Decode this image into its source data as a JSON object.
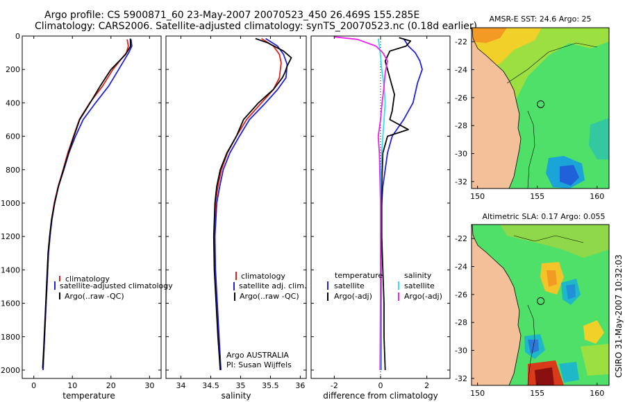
{
  "header": {
    "line1": "Argo profile: CS 5900871_60 23-May-2007 20070523_450 26.469S 155.285E",
    "line2": "Climatology: CARS2006. Satellite-adjusted climatology: synTS_20070523.nc (0.18d earlier)"
  },
  "credit": {
    "line1": "Argo AUSTRALIA",
    "line2": "PI: Susan Wijffels"
  },
  "stamp": "CSIRO 31-May-2007 10:32:03",
  "colors": {
    "red": "#e0201c",
    "blue": "#1f1fe0",
    "black": "#000000",
    "cyan": "#30e0f0",
    "magenta": "#f020f0",
    "land": "#f4c09a"
  },
  "chart_data": [
    {
      "type": "line",
      "id": "temperature",
      "xlabel": "temperature",
      "xlim": [
        -3,
        33
      ],
      "ylim": [
        2050,
        0
      ],
      "xticks": [
        0,
        10,
        20,
        30
      ],
      "yticks": [
        0,
        200,
        400,
        600,
        800,
        1000,
        1200,
        1400,
        1600,
        1800,
        2000
      ],
      "series": [
        {
          "name": "climatology",
          "color": "#e0201c",
          "points": [
            [
              24.2,
              20
            ],
            [
              24.5,
              60
            ],
            [
              24.0,
              100
            ],
            [
              20.5,
              200
            ],
            [
              17.8,
              300
            ],
            [
              14.5,
              400
            ],
            [
              11.8,
              500
            ],
            [
              10.3,
              600
            ],
            [
              8.8,
              700
            ],
            [
              7.6,
              800
            ],
            [
              6.3,
              900
            ],
            [
              5.3,
              1000
            ],
            [
              4.6,
              1100
            ],
            [
              4.2,
              1200
            ],
            [
              3.8,
              1300
            ],
            [
              3.6,
              1400
            ],
            [
              3.4,
              1500
            ],
            [
              3.2,
              1600
            ],
            [
              3.0,
              1700
            ],
            [
              2.8,
              1800
            ],
            [
              2.6,
              1900
            ],
            [
              2.4,
              2000
            ]
          ]
        },
        {
          "name": "satellite-adjusted climatology",
          "color": "#1f1fe0",
          "points": [
            [
              25.2,
              20
            ],
            [
              25.4,
              60
            ],
            [
              24.6,
              100
            ],
            [
              22.0,
              200
            ],
            [
              19.4,
              300
            ],
            [
              16.0,
              400
            ],
            [
              12.8,
              500
            ],
            [
              10.8,
              600
            ],
            [
              9.1,
              700
            ],
            [
              7.8,
              800
            ],
            [
              6.4,
              900
            ],
            [
              5.4,
              1000
            ],
            [
              4.7,
              1100
            ],
            [
              4.2,
              1200
            ],
            [
              3.8,
              1300
            ],
            [
              3.6,
              1400
            ],
            [
              3.4,
              1500
            ],
            [
              3.2,
              1600
            ],
            [
              3.0,
              1700
            ],
            [
              2.8,
              1800
            ],
            [
              2.6,
              1900
            ],
            [
              2.4,
              2000
            ]
          ]
        },
        {
          "name": "Argo(..raw -QC)",
          "color": "#000000",
          "points": [
            [
              25.0,
              15
            ],
            [
              25.1,
              60
            ],
            [
              23.8,
              110
            ],
            [
              20.0,
              200
            ],
            [
              17.2,
              300
            ],
            [
              14.6,
              400
            ],
            [
              11.9,
              500
            ],
            [
              10.4,
              600
            ],
            [
              9.0,
              700
            ],
            [
              7.7,
              800
            ],
            [
              6.4,
              900
            ],
            [
              5.4,
              1000
            ],
            [
              4.6,
              1100
            ],
            [
              4.1,
              1200
            ],
            [
              3.7,
              1300
            ],
            [
              3.5,
              1400
            ],
            [
              3.3,
              1500
            ],
            [
              3.1,
              1600
            ],
            [
              2.9,
              1700
            ],
            [
              2.7,
              1800
            ],
            [
              2.5,
              1900
            ],
            [
              2.3,
              1990
            ]
          ]
        }
      ]
    },
    {
      "type": "line",
      "id": "salinity",
      "xlabel": "salinity",
      "xlim": [
        33.75,
        36.1
      ],
      "ylim": [
        2050,
        0
      ],
      "xticks": [
        34,
        34.5,
        35,
        35.5,
        36
      ],
      "series": [
        {
          "name": "climatology",
          "color": "#e0201c",
          "points": [
            [
              35.35,
              15
            ],
            [
              35.55,
              60
            ],
            [
              35.65,
              110
            ],
            [
              35.68,
              160
            ],
            [
              35.65,
              250
            ],
            [
              35.55,
              320
            ],
            [
              35.35,
              400
            ],
            [
              35.1,
              500
            ],
            [
              34.93,
              600
            ],
            [
              34.78,
              700
            ],
            [
              34.68,
              800
            ],
            [
              34.62,
              900
            ],
            [
              34.58,
              1000
            ],
            [
              34.56,
              1200
            ],
            [
              34.57,
              1400
            ],
            [
              34.6,
              1600
            ],
            [
              34.63,
              1800
            ],
            [
              34.66,
              2000
            ]
          ]
        },
        {
          "name": "satellite adj. clim.",
          "color": "#1f1fe0",
          "points": [
            [
              35.42,
              15
            ],
            [
              35.62,
              60
            ],
            [
              35.72,
              110
            ],
            [
              35.78,
              170
            ],
            [
              35.76,
              250
            ],
            [
              35.62,
              320
            ],
            [
              35.42,
              400
            ],
            [
              35.15,
              500
            ],
            [
              34.98,
              600
            ],
            [
              34.82,
              700
            ],
            [
              34.71,
              800
            ],
            [
              34.65,
              900
            ],
            [
              34.6,
              1000
            ],
            [
              34.57,
              1200
            ],
            [
              34.58,
              1400
            ],
            [
              34.61,
              1600
            ],
            [
              34.64,
              1800
            ],
            [
              34.67,
              2000
            ]
          ]
        },
        {
          "name": "Argo(..raw -QC)",
          "color": "#000000",
          "points": [
            [
              35.25,
              15
            ],
            [
              35.45,
              40
            ],
            [
              35.72,
              90
            ],
            [
              35.85,
              130
            ],
            [
              35.78,
              180
            ],
            [
              35.74,
              220
            ],
            [
              35.7,
              250
            ],
            [
              35.55,
              320
            ],
            [
              35.3,
              400
            ],
            [
              35.05,
              500
            ],
            [
              34.93,
              600
            ],
            [
              34.77,
              700
            ],
            [
              34.66,
              800
            ],
            [
              34.6,
              900
            ],
            [
              34.57,
              1000
            ],
            [
              34.55,
              1200
            ],
            [
              34.56,
              1400
            ],
            [
              34.59,
              1600
            ],
            [
              34.62,
              1800
            ],
            [
              34.66,
              2000
            ]
          ]
        }
      ]
    },
    {
      "type": "line",
      "id": "difference",
      "xlabel": "difference from climatology",
      "xlim": [
        -3,
        3
      ],
      "ylim": [
        2050,
        0
      ],
      "xticks": [
        -2,
        0,
        2
      ],
      "legend_left_title": "temperature",
      "legend_right_title": "salinity",
      "series": [
        {
          "name": "temperature satellite",
          "label": "satellite",
          "color": "#1f1fe0",
          "points": [
            [
              1.0,
              15
            ],
            [
              1.2,
              60
            ],
            [
              1.5,
              100
            ],
            [
              1.7,
              150
            ],
            [
              1.8,
              200
            ],
            [
              1.6,
              280
            ],
            [
              1.4,
              400
            ],
            [
              1.0,
              500
            ],
            [
              0.5,
              600
            ],
            [
              0.3,
              700
            ],
            [
              0.2,
              800
            ],
            [
              0.1,
              900
            ],
            [
              0.05,
              1000
            ],
            [
              0.02,
              1200
            ],
            [
              0.02,
              1400
            ],
            [
              0.02,
              1600
            ],
            [
              0.02,
              1800
            ],
            [
              0.02,
              2000
            ]
          ]
        },
        {
          "name": "temperature Argo(-adj)",
          "label": "Argo(-adj)",
          "color": "#000000",
          "points": [
            [
              0.8,
              10
            ],
            [
              1.3,
              30
            ],
            [
              1.1,
              60
            ],
            [
              0.4,
              90
            ],
            [
              0.2,
              150
            ],
            [
              0.4,
              250
            ],
            [
              0.6,
              350
            ],
            [
              0.5,
              450
            ],
            [
              0.4,
              500
            ],
            [
              1.2,
              560
            ],
            [
              0.3,
              600
            ],
            [
              0.1,
              700
            ],
            [
              0.05,
              900
            ],
            [
              0.05,
              1200
            ],
            [
              0.1,
              1400
            ],
            [
              0.15,
              1600
            ],
            [
              0.15,
              1800
            ],
            [
              0.2,
              2000
            ]
          ]
        },
        {
          "name": "salinity satellite",
          "label": "satellite",
          "color": "#30e0f0",
          "points": [
            [
              -0.1,
              15
            ],
            [
              -0.05,
              60
            ],
            [
              0.0,
              120
            ],
            [
              0.05,
              200
            ],
            [
              0.15,
              300
            ],
            [
              0.2,
              400
            ],
            [
              0.15,
              500
            ],
            [
              0.1,
              600
            ],
            [
              0.05,
              700
            ],
            [
              0.02,
              800
            ],
            [
              0.0,
              1000
            ],
            [
              0.0,
              1500
            ],
            [
              0.0,
              2000
            ]
          ]
        },
        {
          "name": "salinity Argo(-adj)",
          "label": "Argo(-adj)",
          "color": "#f020f0",
          "points": [
            [
              -2.0,
              5
            ],
            [
              -1.0,
              20
            ],
            [
              -0.2,
              60
            ],
            [
              0.1,
              100
            ],
            [
              0.3,
              150
            ],
            [
              0.2,
              220
            ],
            [
              0.15,
              300
            ],
            [
              0.05,
              420
            ],
            [
              0.0,
              500
            ],
            [
              -0.1,
              600
            ],
            [
              -0.05,
              700
            ],
            [
              0.0,
              1000
            ],
            [
              0.0,
              1500
            ],
            [
              -0.02,
              2000
            ]
          ]
        }
      ]
    },
    {
      "type": "heatmap",
      "id": "sst-map",
      "title": "AMSR-E SST: 24.6 Argo: 25",
      "xlim": [
        149.5,
        161
      ],
      "ylim": [
        -32.5,
        -21
      ],
      "xticks": [
        150,
        155,
        160
      ],
      "yticks": [
        -22,
        -24,
        -26,
        -28,
        -30,
        -32
      ],
      "float_position": [
        155.285,
        -26.469
      ]
    },
    {
      "type": "heatmap",
      "id": "sla-map",
      "title": "Altimetric SLA: 0.17 Argo: 0.055",
      "xlim": [
        149.5,
        161
      ],
      "ylim": [
        -32.5,
        -21
      ],
      "xticks": [
        150,
        155,
        160
      ],
      "yticks": [
        -22,
        -24,
        -26,
        -28,
        -30,
        -32
      ],
      "float_position": [
        155.285,
        -26.469
      ]
    }
  ]
}
